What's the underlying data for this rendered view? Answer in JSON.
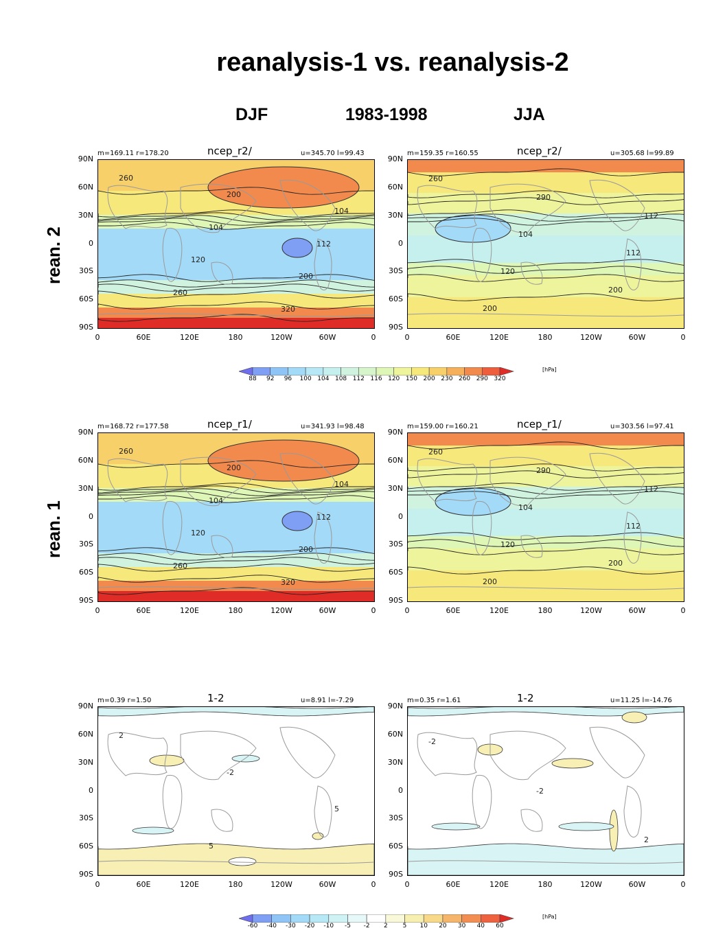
{
  "title": "reanalysis-1 vs. reanalysis-2",
  "headers": {
    "left": "DJF",
    "middle": "1983-1998",
    "right": "JJA"
  },
  "row_labels": {
    "row1": "rean. 2",
    "row2": "rean. 1"
  },
  "lat_labels": [
    "90N",
    "60N",
    "30N",
    "0",
    "30S",
    "60S",
    "90S"
  ],
  "lon_labels": [
    "0",
    "60E",
    "120E",
    "180",
    "120W",
    "60W",
    "0"
  ],
  "panels": {
    "r2_djf": {
      "title": "ncep_r2/",
      "stats_left": "m=169.11 r=178.20",
      "stats_right": "u=345.70 l=99.43",
      "contours": [
        "260",
        "200",
        "104",
        "104",
        "112",
        "120",
        "200",
        "260",
        "320"
      ]
    },
    "r2_jja": {
      "title": "ncep_r2/",
      "stats_left": "m=159.35 r=160.55",
      "stats_right": "u=305.68 l=99.89",
      "contours": [
        "260",
        "290",
        "112",
        "104",
        "112",
        "120",
        "200",
        "200"
      ]
    },
    "r1_djf": {
      "title": "ncep_r1/",
      "stats_left": "m=168.72 r=177.58",
      "stats_right": "u=341.93 l=98.48",
      "contours": [
        "260",
        "200",
        "104",
        "104",
        "112",
        "120",
        "200",
        "260",
        "320"
      ]
    },
    "r1_jja": {
      "title": "ncep_r1/",
      "stats_left": "m=159.00 r=160.21",
      "stats_right": "u=303.56 l=97.41",
      "contours": [
        "260",
        "290",
        "112",
        "104",
        "112",
        "120",
        "200",
        "200"
      ]
    },
    "d_djf": {
      "title": "1-2",
      "stats_left": "m=0.39 r=1.50",
      "stats_right": "u=8.91 l=-7.29",
      "contours": [
        "2",
        "-2",
        "5",
        "5"
      ]
    },
    "d_jja": {
      "title": "1-2",
      "stats_left": "m=0.35 r=1.61",
      "stats_right": "u=11.25 l=-14.76",
      "contours": [
        "-2",
        "-2",
        "2"
      ]
    }
  },
  "colorbar_top": {
    "unit": "[hPa]",
    "labels": [
      "88",
      "92",
      "96",
      "100",
      "104",
      "108",
      "112",
      "116",
      "120",
      "150",
      "200",
      "230",
      "260",
      "290",
      "320"
    ],
    "colors": [
      "#6e6eee",
      "#7f9ff5",
      "#8fc4f7",
      "#a2daf7",
      "#b6e8f6",
      "#c6f0ee",
      "#cff3de",
      "#d7f5cb",
      "#def6b6",
      "#eef49b",
      "#f7e87c",
      "#f8d06a",
      "#f6b05c",
      "#f28a4d",
      "#ee5e3c",
      "#e02c26"
    ]
  },
  "colorbar_bottom": {
    "unit": "[hPa]",
    "labels": [
      "-60",
      "-40",
      "-30",
      "-20",
      "-10",
      "-5",
      "-2",
      "2",
      "5",
      "10",
      "20",
      "30",
      "40",
      "60"
    ],
    "colors": [
      "#6e6eee",
      "#7f9ff5",
      "#8fc4f7",
      "#a2daf7",
      "#b6e8f6",
      "#cff3f4",
      "#e6f8f8",
      "#ffffff",
      "#f9f8d8",
      "#f6efb0",
      "#f7d989",
      "#f5b56a",
      "#f28e52",
      "#ee6240",
      "#e02c26"
    ]
  }
}
